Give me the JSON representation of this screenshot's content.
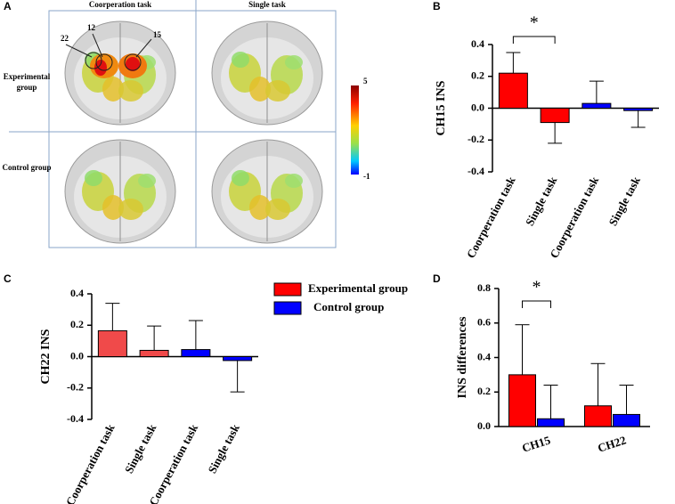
{
  "brain_panel": {
    "label": "A",
    "columns": [
      "Coorperation task",
      "Single task"
    ],
    "rows": [
      "Experimental group",
      "Control group"
    ],
    "channels": [
      "22",
      "12",
      "15"
    ],
    "colorbar": {
      "max": 5,
      "min": -1
    }
  },
  "chart_data": [
    {
      "type": "bar",
      "label": "B",
      "ylabel": "CH15 INS",
      "categories": [
        "Coorperation  task",
        "Single task",
        "Coorperation  task",
        "Single task"
      ],
      "values": [
        0.22,
        -0.09,
        0.03,
        -0.015
      ],
      "errors": [
        0.13,
        0.13,
        0.14,
        0.105
      ],
      "colors": [
        "#ff0000",
        "#ff0000",
        "#0000ff",
        "#0000ff"
      ],
      "ylim": [
        -0.4,
        0.4
      ],
      "yticks": [
        -0.4,
        -0.2,
        {
          "value": 0,
          "label": "0.0"
        },
        0.2,
        0.4
      ],
      "annotation": "*"
    },
    {
      "type": "bar",
      "label": "C",
      "ylabel": "CH22 INS",
      "categories": [
        "Coorperation  task",
        "Single task",
        "Coorperation  task",
        "Single task"
      ],
      "values": [
        0.165,
        0.04,
        0.045,
        -0.025
      ],
      "errors": [
        0.175,
        0.155,
        0.185,
        0.2
      ],
      "colors": [
        "#f04a4a",
        "#f04a4a",
        "#0000ff",
        "#0000ff"
      ],
      "ylim": [
        -0.4,
        0.4
      ],
      "yticks": [
        -0.4,
        -0.2,
        {
          "value": 0,
          "label": "0.0"
        },
        0.2,
        0.4
      ]
    },
    {
      "type": "bar",
      "label": "D",
      "ylabel": "INS differences",
      "categories": [
        "CH15",
        "CH22"
      ],
      "series": [
        {
          "name": "Experimental group",
          "color": "#ff0000",
          "values": [
            0.3,
            0.12
          ],
          "errors": [
            0.29,
            0.245
          ]
        },
        {
          "name": "Control group",
          "color": "#0000ff",
          "values": [
            0.045,
            0.07
          ],
          "errors": [
            0.195,
            0.17
          ]
        }
      ],
      "ylim": [
        0,
        0.8
      ],
      "yticks": [
        {
          "value": 0,
          "label": "0.0"
        },
        0.2,
        0.4,
        0.6,
        0.8
      ],
      "annotation": "*"
    }
  ]
}
